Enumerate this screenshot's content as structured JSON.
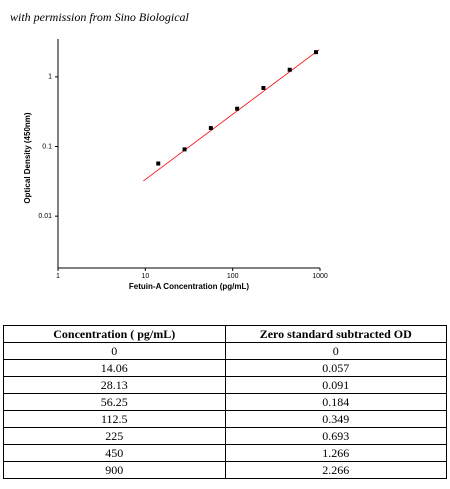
{
  "header": {
    "note": "with permission from Sino Biological"
  },
  "chart_data": {
    "type": "scatter",
    "xlabel": "Fetuin-A Concentration (pg/mL)",
    "ylabel": "Optical Density (450nm)",
    "x": [
      14.06,
      28.13,
      56.25,
      112.5,
      225,
      450,
      900
    ],
    "values": [
      0.057,
      0.091,
      0.184,
      0.349,
      0.693,
      1.266,
      2.266
    ],
    "color": "#000000",
    "fit": {
      "color": "#ff0000",
      "x": [
        9.5,
        975
      ],
      "values": [
        0.032,
        2.45
      ]
    },
    "xlog": true,
    "ylog": true,
    "xlim": [
      1,
      1000
    ],
    "xticks": [
      1,
      10,
      100,
      1000
    ],
    "ylim": [
      0.0018,
      3.5
    ],
    "yticks": [
      0.01,
      0.1,
      1
    ]
  },
  "table": {
    "header": [
      "Concentration ( pg/mL)",
      "Zero standard subtracted OD"
    ],
    "rows": [
      [
        "0",
        "0"
      ],
      [
        "14.06",
        "0.057"
      ],
      [
        "28.13",
        "0.091"
      ],
      [
        "56.25",
        "0.184"
      ],
      [
        "112.5",
        "0.349"
      ],
      [
        "225",
        "0.693"
      ],
      [
        "450",
        "1.266"
      ],
      [
        "900",
        "2.266"
      ]
    ]
  }
}
